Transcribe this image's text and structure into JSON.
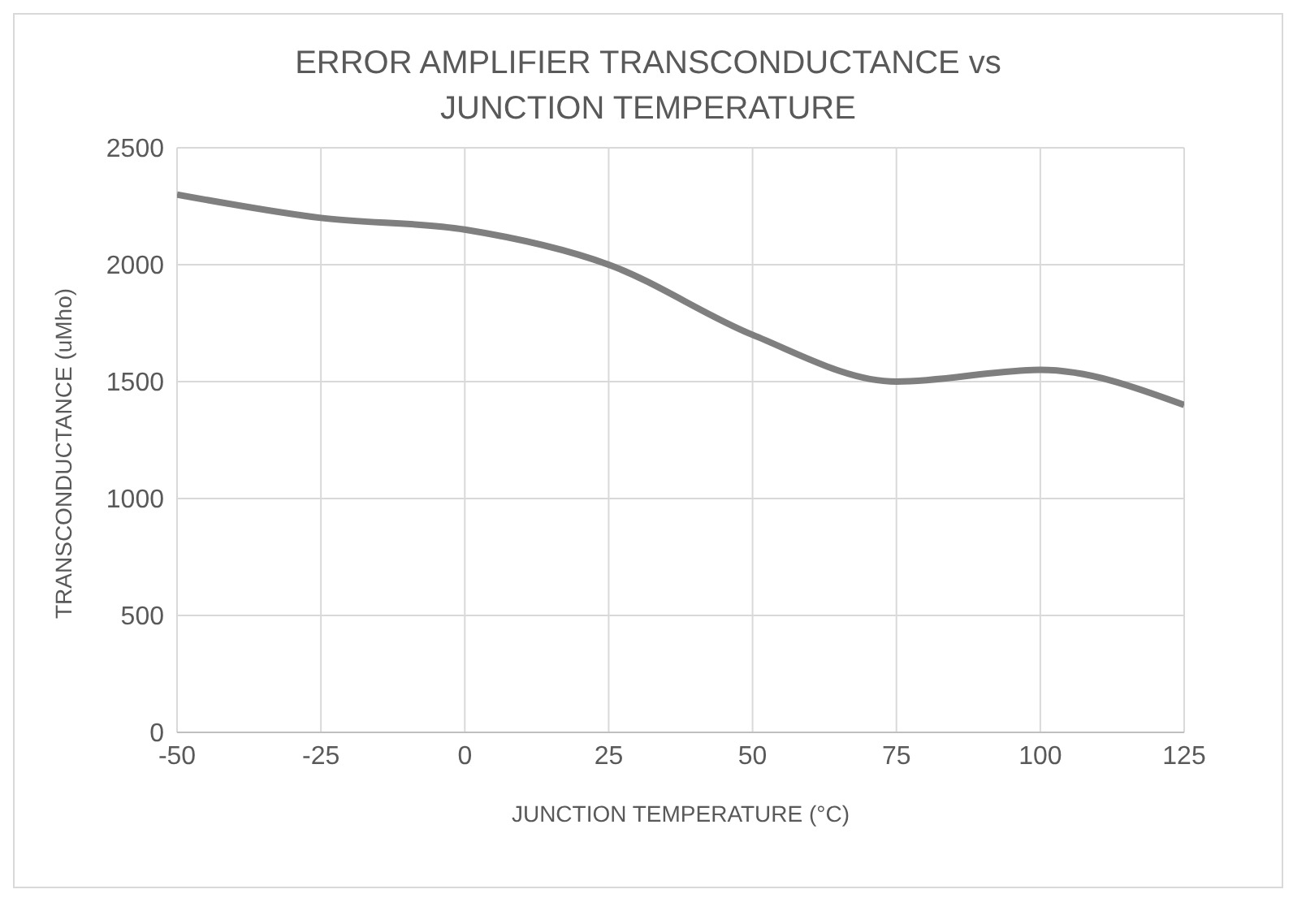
{
  "chart_data": {
    "type": "line",
    "title": "ERROR AMPLIFIER TRANSCONDUCTANCE vs JUNCTION TEMPERATURE",
    "xlabel": "JUNCTION TEMPERATURE (°C)",
    "ylabel": "TRANSCONDUCTANCE (uMho)",
    "x": [
      -50,
      -25,
      0,
      25,
      50,
      75,
      100,
      125
    ],
    "series": [
      {
        "color": "#7f7f7f",
        "values": [
          2300,
          2200,
          2150,
          2000,
          1700,
          1500,
          1550,
          1400
        ]
      }
    ],
    "xlim": [
      -50,
      125
    ],
    "xticks": [
      -50,
      -25,
      0,
      25,
      50,
      75,
      100,
      125
    ],
    "ylim": [
      0,
      2500
    ],
    "yticks": [
      0,
      500,
      1000,
      1500,
      2000,
      2500
    ],
    "grid": true,
    "legend": false,
    "marker": "none",
    "line_style": "solid"
  }
}
